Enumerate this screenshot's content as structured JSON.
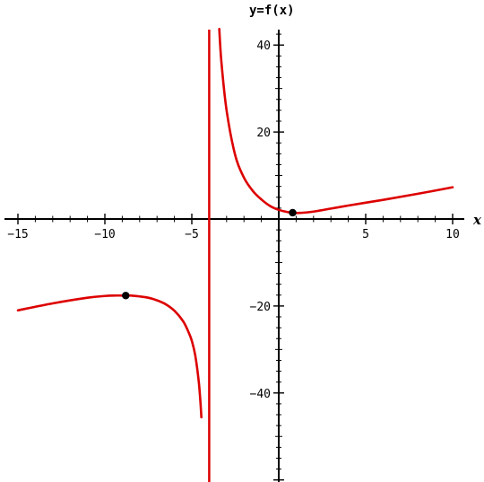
{
  "chart_data": {
    "type": "line",
    "title": "",
    "xlabel": "x",
    "ylabel": "y=f(x)",
    "xlim": [
      -15.5,
      10.3
    ],
    "ylim": [
      -60,
      45
    ],
    "grid": false,
    "x_ticks": [
      {
        "value": -15,
        "label": "−15"
      },
      {
        "value": -10,
        "label": "−10"
      },
      {
        "value": -5,
        "label": "−5"
      },
      {
        "value": 5,
        "label": "5"
      },
      {
        "value": 10,
        "label": "10"
      }
    ],
    "y_ticks": [
      {
        "value": 40,
        "label": "40"
      },
      {
        "value": 20,
        "label": "20"
      },
      {
        "value": -20,
        "label": "−20"
      },
      {
        "value": -40,
        "label": "−40"
      }
    ],
    "asymptote_x": -4,
    "curve_color": "#dd0000",
    "series": [
      {
        "x": [
          -15,
          -13,
          -11,
          -10,
          -9.5,
          -9,
          -8.8,
          -8.5,
          -8,
          -7.5,
          -7,
          -6.5,
          -6,
          -5.5,
          -5.2,
          -5,
          -4.8,
          -4.6,
          -4.5,
          -4.45
        ],
        "y": [
          -21.0,
          -19.4,
          -18.1,
          -17.7,
          -17.6,
          -17.6,
          -17.6,
          -17.6,
          -17.8,
          -18.1,
          -18.7,
          -19.6,
          -21.1,
          -23.5,
          -25.9,
          -28.0,
          -31.4,
          -37.4,
          -42.3,
          -45.6
        ]
      },
      {
        "x": [
          -3.42,
          -3.3,
          -3.0,
          -2.5,
          -2.0,
          -1.5,
          -1.0,
          -0.5,
          0,
          0.5,
          0.8,
          1.2,
          2,
          4,
          6,
          8,
          10
        ],
        "y": [
          43.7,
          36.2,
          25.0,
          14.6,
          9.5,
          6.5,
          4.5,
          3.0,
          2.1,
          1.6,
          1.45,
          1.4,
          1.7,
          3.1,
          4.4,
          5.8,
          7.3
        ]
      }
    ],
    "points": [
      {
        "x": -8.8,
        "y": -17.6
      },
      {
        "x": 0.8,
        "y": 1.45
      }
    ]
  }
}
